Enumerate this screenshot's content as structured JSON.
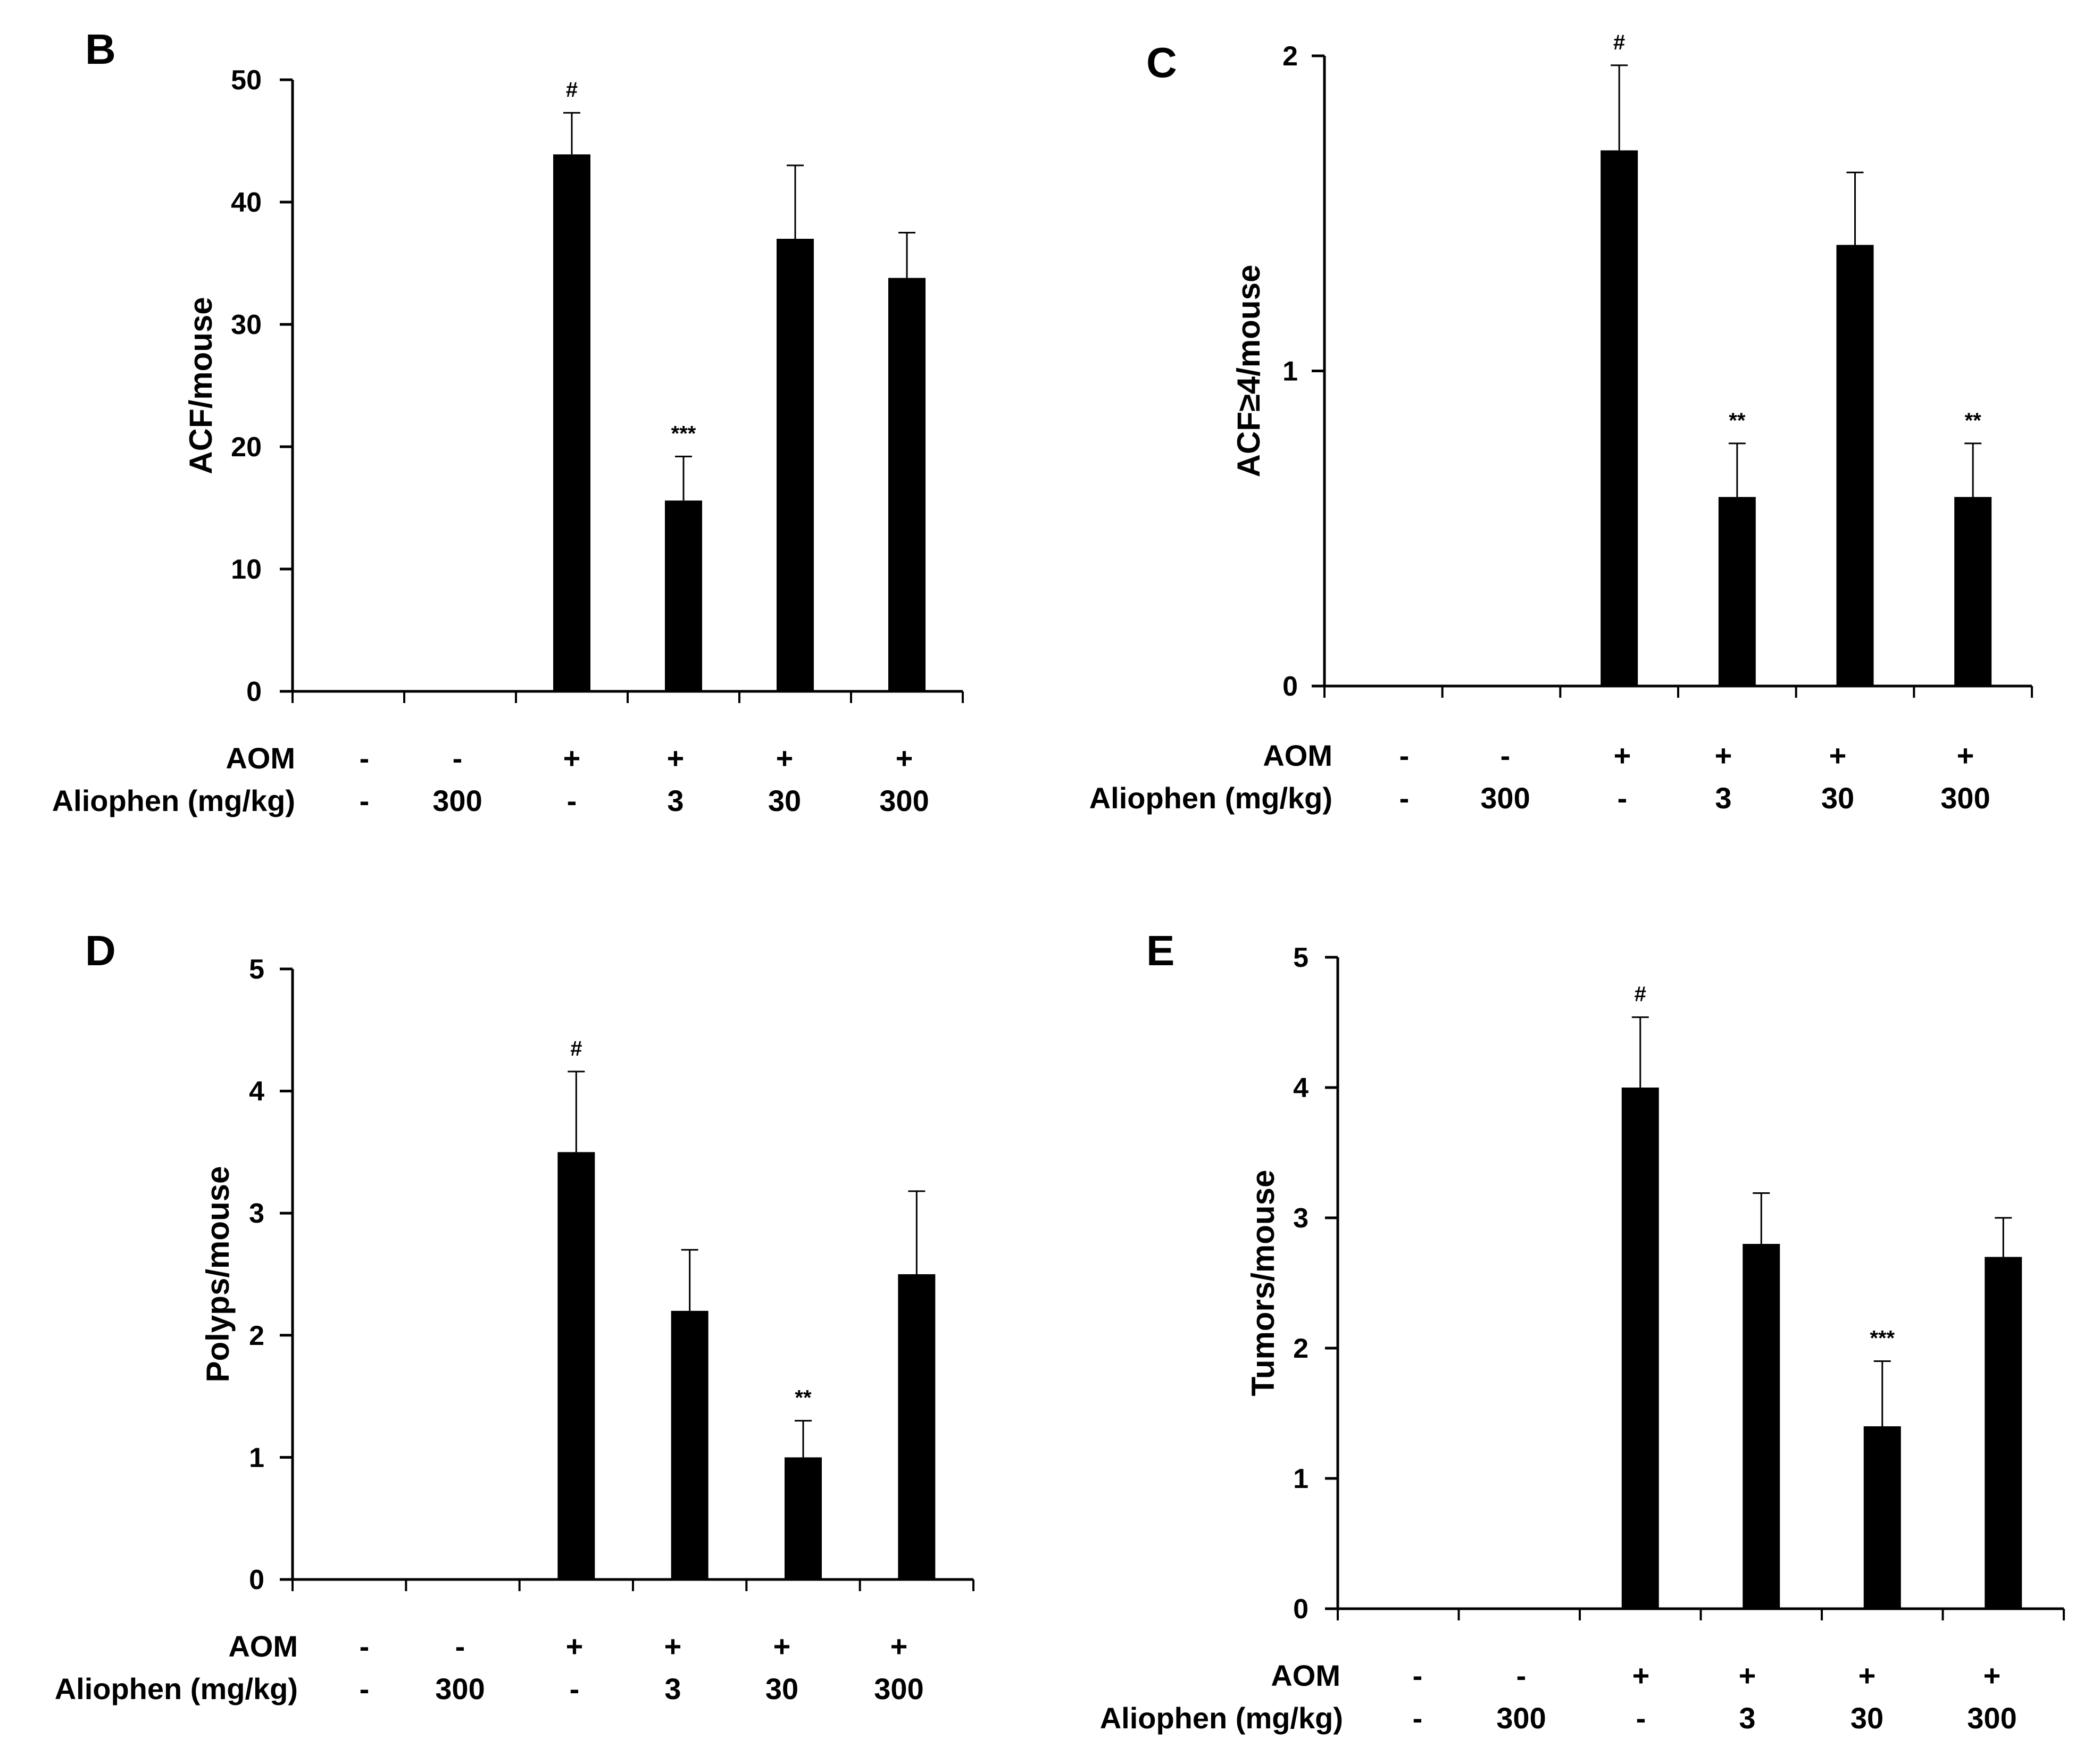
{
  "figure": {
    "groups": {
      "aom_label": "AOM",
      "aom": [
        "-",
        "-",
        "+",
        "+",
        "+",
        "+"
      ],
      "aliophen_label": "Aliophen (mg/kg)",
      "aliophen": [
        "-",
        "300",
        "-",
        "3",
        "30",
        "300"
      ]
    },
    "bar_color": "#000000"
  },
  "chart_data": [
    {
      "type": "bar",
      "panel": "B",
      "ylabel": "ACF/mouse",
      "ylim": [
        0,
        50
      ],
      "yticks": [
        0,
        10,
        20,
        30,
        40,
        50
      ],
      "categories": [
        "-/-",
        "-/300",
        "+/-",
        "+/3",
        "+/30",
        "+/300"
      ],
      "values": [
        0,
        0,
        43.9,
        15.6,
        37.0,
        33.8
      ],
      "errors": [
        0,
        0,
        3.4,
        3.6,
        6.0,
        3.7
      ],
      "annotations": [
        "",
        "",
        "#",
        "***",
        "",
        ""
      ]
    },
    {
      "type": "bar",
      "panel": "C",
      "ylabel": "ACF≥4/mouse",
      "ylim": [
        0,
        2
      ],
      "yticks": [
        0,
        1,
        2
      ],
      "categories": [
        "-/-",
        "-/300",
        "+/-",
        "+/3",
        "+/30",
        "+/300"
      ],
      "values": [
        0,
        0,
        1.7,
        0.6,
        1.4,
        0.6
      ],
      "errors": [
        0,
        0,
        0.27,
        0.17,
        0.23,
        0.17
      ],
      "annotations": [
        "",
        "",
        "#",
        "**",
        "",
        "**"
      ]
    },
    {
      "type": "bar",
      "panel": "D",
      "ylabel": "Polyps/mouse",
      "ylim": [
        0,
        5
      ],
      "yticks": [
        0,
        1,
        2,
        3,
        4,
        5
      ],
      "categories": [
        "-/-",
        "-/300",
        "+/-",
        "+/3",
        "+/30",
        "+/300"
      ],
      "values": [
        0,
        0,
        3.5,
        2.2,
        1.0,
        2.5
      ],
      "errors": [
        0,
        0,
        0.66,
        0.5,
        0.3,
        0.68
      ],
      "annotations": [
        "",
        "",
        "#",
        "",
        "**",
        ""
      ]
    },
    {
      "type": "bar",
      "panel": "E",
      "ylabel": "Tumors/mouse",
      "ylim": [
        0,
        5
      ],
      "yticks": [
        0,
        1,
        2,
        3,
        4,
        5
      ],
      "categories": [
        "-/-",
        "-/300",
        "+/-",
        "+/3",
        "+/30",
        "+/300"
      ],
      "values": [
        0,
        0,
        4.0,
        2.8,
        1.4,
        2.7
      ],
      "errors": [
        0,
        0,
        0.54,
        0.39,
        0.5,
        0.3
      ],
      "annotations": [
        "",
        "",
        "#",
        "",
        "***",
        ""
      ]
    }
  ]
}
